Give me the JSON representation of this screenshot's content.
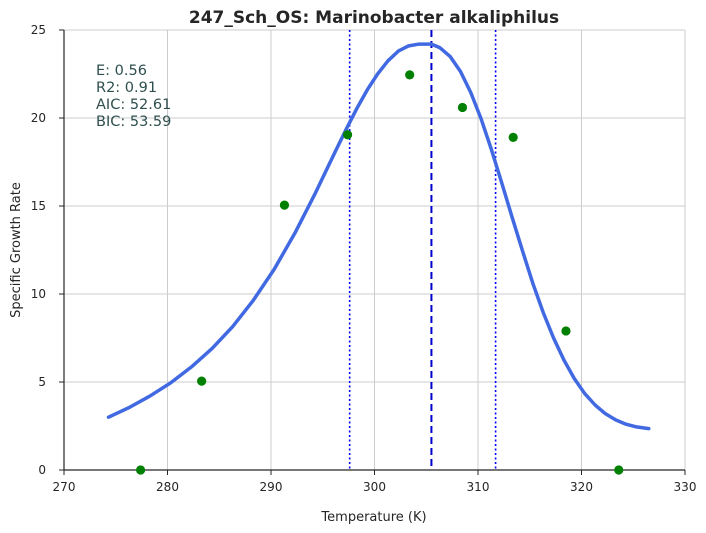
{
  "chart_data": {
    "type": "scatter",
    "title": "247_Sch_OS: Marinobacter alkaliphilus",
    "xlabel": "Temperature (K)",
    "ylabel": "Specific Growth Rate",
    "xlim": [
      270,
      330
    ],
    "ylim": [
      0,
      25
    ],
    "xticks": [
      270,
      280,
      290,
      300,
      310,
      320,
      330
    ],
    "yticks": [
      0,
      5,
      10,
      15,
      20,
      25
    ],
    "grid": true,
    "points": {
      "color": "#008000",
      "x": [
        277.4,
        283.3,
        291.3,
        297.4,
        303.4,
        308.5,
        313.4,
        318.5,
        323.6
      ],
      "y": [
        0.0,
        5.05,
        15.05,
        19.05,
        22.45,
        20.6,
        18.9,
        7.9,
        0.0
      ]
    },
    "fit_curve": {
      "color": "#4169e1",
      "x": [
        274.3,
        276.3,
        278.3,
        280.3,
        282.3,
        284.3,
        286.3,
        288.3,
        290.3,
        292.3,
        294.3,
        296.3,
        297.3,
        298.3,
        299.3,
        300.3,
        301.3,
        302.3,
        303.3,
        304.3,
        305.3,
        305.5,
        306.3,
        307.3,
        308.3,
        309.3,
        310.3,
        311.3,
        312.3,
        313.3,
        314.3,
        315.3,
        316.3,
        317.3,
        318.3,
        319.3,
        320.3,
        321.3,
        322.3,
        323.3,
        324.3,
        325.3,
        326.5
      ],
      "y": [
        3.0,
        3.55,
        4.2,
        4.95,
        5.85,
        6.9,
        8.15,
        9.65,
        11.4,
        13.45,
        15.75,
        18.2,
        19.4,
        20.55,
        21.6,
        22.5,
        23.25,
        23.8,
        24.1,
        24.2,
        24.2,
        24.2,
        24.0,
        23.5,
        22.65,
        21.45,
        19.95,
        18.2,
        16.3,
        14.35,
        12.45,
        10.6,
        8.95,
        7.5,
        6.25,
        5.2,
        4.35,
        3.7,
        3.2,
        2.85,
        2.6,
        2.45,
        2.35
      ]
    },
    "vlines": [
      {
        "x": 305.5,
        "style": "dashed",
        "color": "#0000cd"
      },
      {
        "x": 297.6,
        "style": "dotted",
        "color": "#0000ff"
      },
      {
        "x": 311.7,
        "style": "dotted",
        "color": "#0000ff"
      }
    ],
    "stats_text": [
      "E:  0.56",
      "R2:  0.91",
      "AIC: 52.61",
      "BIC: 53.59"
    ]
  }
}
